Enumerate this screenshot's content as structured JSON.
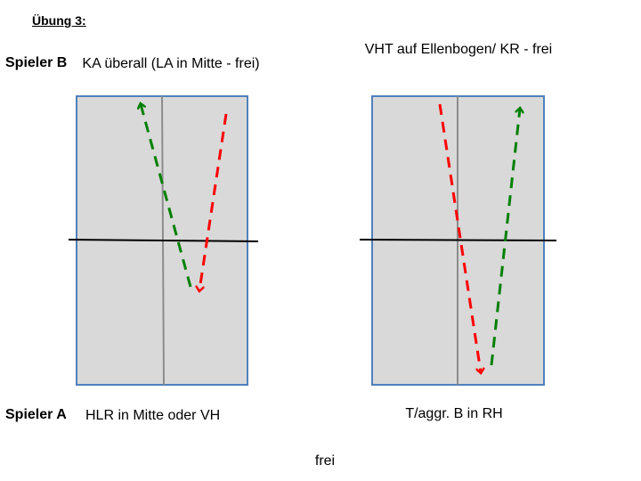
{
  "title": "Übung 3:",
  "player_b": {
    "label": "Spieler B",
    "left_instruction": "KA überall (LA in Mitte - frei)",
    "right_instruction": "VHT auf Ellenbogen/ KR - frei"
  },
  "player_a": {
    "label": "Spieler A",
    "left_instruction": "HLR in Mitte oder VH",
    "right_instruction": "T/aggr. B in RH"
  },
  "footer": "frei",
  "colors": {
    "table_fill": "#d9d9d9",
    "table_border": "#4f81bd",
    "center_line": "#8c8c8c",
    "net": "#000000",
    "red_arrow": "#ff0000",
    "green_arrow": "#008000"
  }
}
